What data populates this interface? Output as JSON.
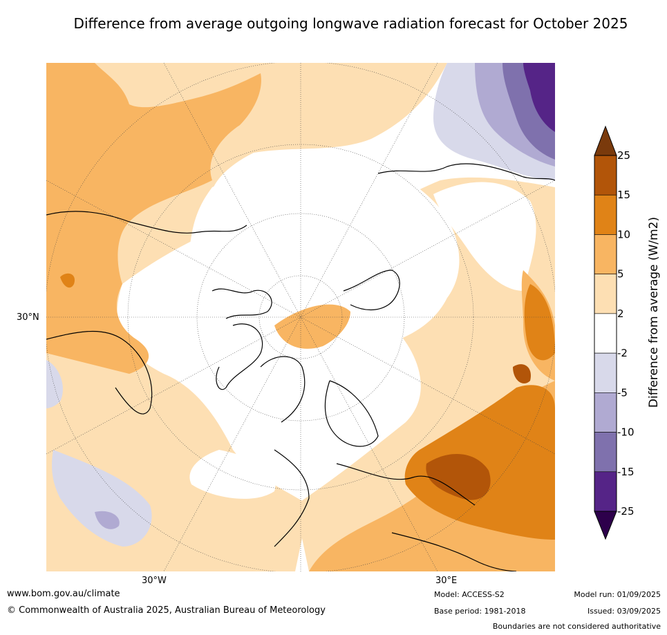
{
  "title": "Difference from average outgoing longwave radiation forecast for October 2025",
  "map": {
    "projection": "north polar stereographic",
    "labels": {
      "lat_30n": "30°N",
      "lon_30w": "30°W",
      "lon_30e": "30°E"
    }
  },
  "legend": {
    "label": "Difference from average (W/m2)",
    "ticks": [
      "25",
      "15",
      "10",
      "5",
      "2",
      "-2",
      "-5",
      "-10",
      "-15",
      "-25"
    ],
    "bins": [
      {
        "range": ">25",
        "color": "#7a3a0c"
      },
      {
        "range": "15 to 25",
        "color": "#b25509"
      },
      {
        "range": "10 to 15",
        "color": "#e08317"
      },
      {
        "range": "5 to 10",
        "color": "#f8b562"
      },
      {
        "range": "2 to 5",
        "color": "#fddfb3"
      },
      {
        "range": "-2 to 2",
        "color": "#ffffff"
      },
      {
        "range": "-5 to -2",
        "color": "#d8d9ea"
      },
      {
        "range": "-10 to -5",
        "color": "#b0aad2"
      },
      {
        "range": "-15 to -10",
        "color": "#7f71ad"
      },
      {
        "range": "-25 to -15",
        "color": "#552487"
      },
      {
        "range": "<-25",
        "color": "#2d004b"
      }
    ]
  },
  "footer": {
    "website": "www.bom.gov.au/climate",
    "copyright": "© Commonwealth of Australia 2025, Australian Bureau of Meteorology",
    "model": "Model: ACCESS-S2",
    "base_period": "Base period: 1981-2018",
    "model_run": "Model run: 01/09/2025",
    "issued": "Issued: 03/09/2025",
    "disclaimer": "Boundaries are not considered authoritative"
  }
}
